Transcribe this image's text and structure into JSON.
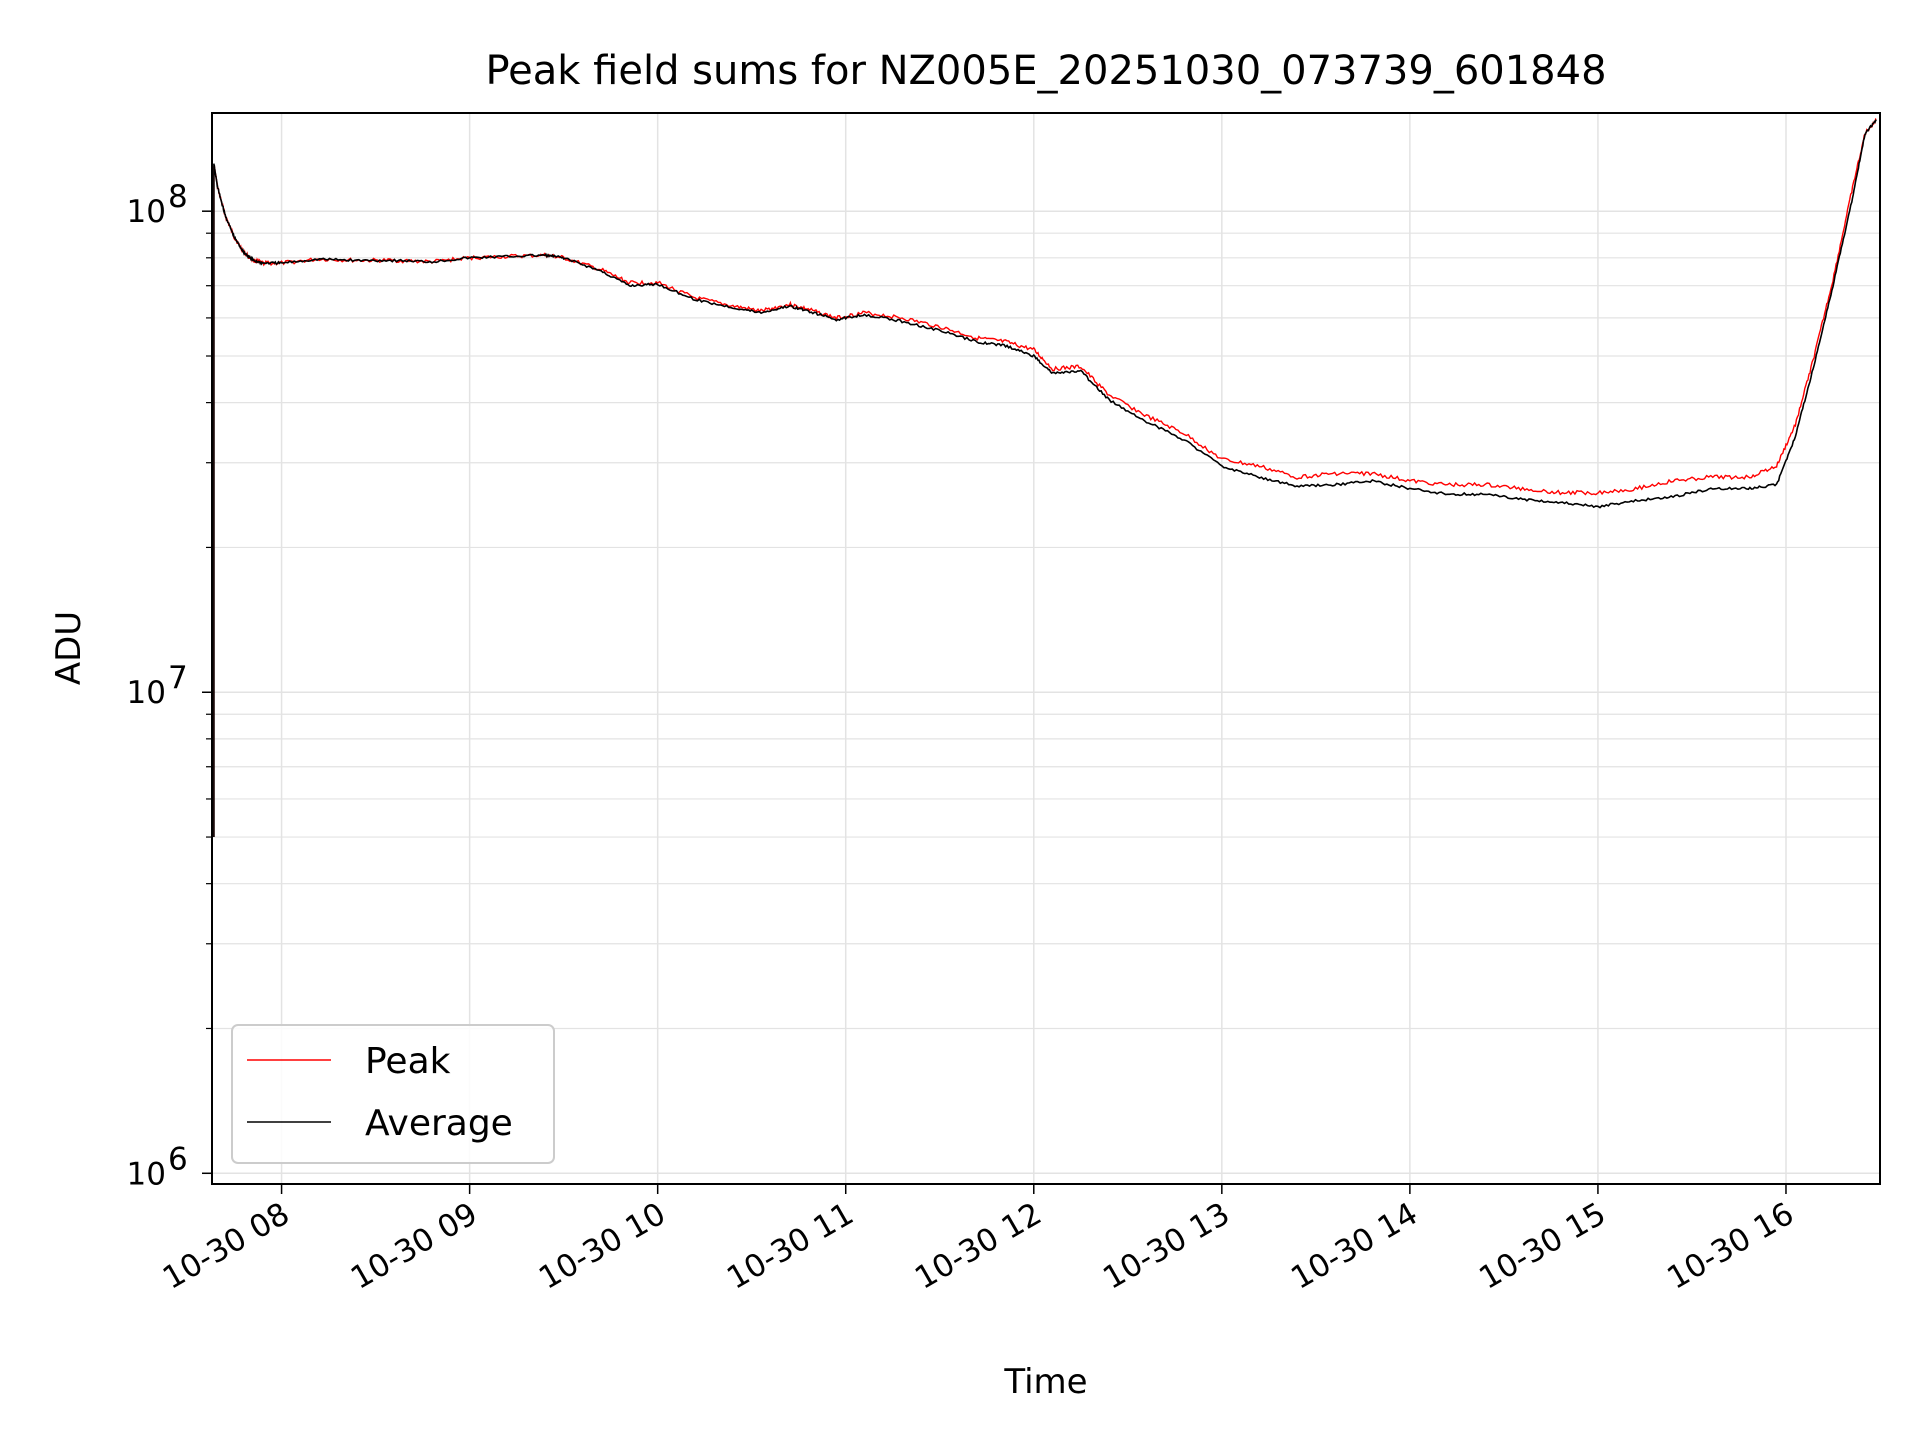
{
  "chart_data": {
    "type": "line",
    "title": "Peak field sums for NZ005E_20251030_073739_601848",
    "xlabel": "Time",
    "ylabel": "ADU",
    "yscale": "log",
    "ylim": [
      950000,
      160000000
    ],
    "xlim_hours": [
      7.63,
      16.5
    ],
    "grid": true,
    "legend_location": "lower-left",
    "x_tick_labels": [
      "10-30 08",
      "10-30 09",
      "10-30 10",
      "10-30 11",
      "10-30 12",
      "10-30 13",
      "10-30 14",
      "10-30 15",
      "10-30 16"
    ],
    "x_tick_hours": [
      8,
      9,
      10,
      11,
      12,
      13,
      14,
      15,
      16
    ],
    "y_tick_labels": [
      {
        "base": "10",
        "exp": "6",
        "value": 1000000
      },
      {
        "base": "10",
        "exp": "7",
        "value": 10000000
      },
      {
        "base": "10",
        "exp": "8",
        "value": 100000000
      }
    ],
    "x_hours": [
      7.64,
      7.66,
      7.7,
      7.75,
      7.8,
      7.85,
      7.9,
      8.0,
      8.2,
      8.4,
      8.6,
      8.8,
      9.0,
      9.2,
      9.4,
      9.5,
      9.7,
      9.85,
      10.0,
      10.2,
      10.4,
      10.55,
      10.7,
      10.8,
      10.95,
      11.1,
      11.3,
      11.5,
      11.7,
      11.85,
      12.0,
      12.1,
      12.25,
      12.4,
      12.6,
      12.8,
      13.0,
      13.2,
      13.4,
      13.6,
      13.8,
      14.0,
      14.2,
      14.4,
      14.6,
      14.8,
      15.0,
      15.2,
      15.4,
      15.6,
      15.8,
      15.95,
      16.05,
      16.15,
      16.25,
      16.35,
      16.42,
      16.48
    ],
    "series": [
      {
        "name": "Peak",
        "color": "#ff0000",
        "values": [
          125000000,
          112000000,
          98000000,
          88000000,
          82000000,
          79000000,
          78000000,
          78000000,
          79500000,
          79000000,
          79000000,
          78500000,
          80000000,
          80500000,
          81000000,
          80000000,
          75500000,
          71000000,
          71000000,
          66000000,
          63500000,
          62000000,
          64000000,
          62500000,
          60000000,
          61500000,
          60000000,
          57500000,
          54500000,
          53500000,
          51500000,
          47000000,
          47500000,
          41500000,
          37500000,
          34500000,
          30500000,
          29500000,
          28000000,
          28500000,
          28500000,
          27500000,
          27000000,
          27000000,
          26500000,
          26000000,
          26000000,
          26500000,
          27500000,
          28000000,
          28000000,
          29500000,
          36000000,
          50000000,
          72000000,
          110000000,
          145000000,
          155000000
        ]
      },
      {
        "name": "Average",
        "color": "#000000",
        "values": [
          125000000,
          112000000,
          98000000,
          88000000,
          82000000,
          79000000,
          78000000,
          78000000,
          79500000,
          79000000,
          79000000,
          78500000,
          80000000,
          80500000,
          81000000,
          80000000,
          75000000,
          70000000,
          70500000,
          65500000,
          63000000,
          61500000,
          63500000,
          62000000,
          59500000,
          61000000,
          59000000,
          56500000,
          53500000,
          52500000,
          50000000,
          46000000,
          46500000,
          40500000,
          36500000,
          33500000,
          29500000,
          28000000,
          26800000,
          27000000,
          27500000,
          26500000,
          25800000,
          25800000,
          25200000,
          24800000,
          24300000,
          25000000,
          25500000,
          26500000,
          26500000,
          27000000,
          34000000,
          48000000,
          70000000,
          105000000,
          145000000,
          155000000
        ]
      }
    ]
  }
}
